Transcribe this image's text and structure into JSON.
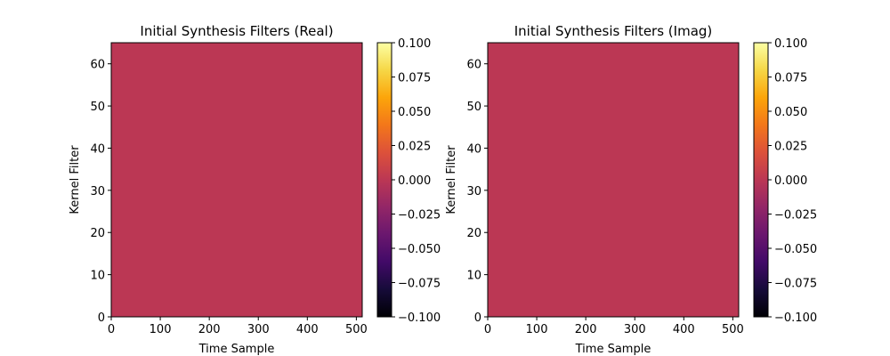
{
  "chart_data": [
    {
      "type": "heatmap",
      "title": "Initial Synthesis Filters (Real)",
      "xlabel": "Time Sample",
      "ylabel": "Kernel Filter",
      "xlim": [
        0,
        512
      ],
      "ylim": [
        0,
        65
      ],
      "xticks": [
        0,
        100,
        200,
        300,
        400,
        500
      ],
      "yticks": [
        0,
        10,
        20,
        30,
        40,
        50,
        60
      ],
      "values": "all 0.0 (uniform)",
      "fill_value": 0.0,
      "colormap": "inferno",
      "fill_color": "#bb3754",
      "colorbar": {
        "vmin": -0.1,
        "vmax": 0.1,
        "ticks": [
          -0.1,
          -0.075,
          -0.05,
          -0.025,
          0.0,
          0.025,
          0.05,
          0.075,
          0.1
        ],
        "tick_labels": [
          "−0.100",
          "−0.075",
          "−0.050",
          "−0.025",
          "0.000",
          "0.025",
          "0.050",
          "0.075",
          "0.100"
        ]
      }
    },
    {
      "type": "heatmap",
      "title": "Initial Synthesis Filters (Imag)",
      "xlabel": "Time Sample",
      "ylabel": "Kernel Filter",
      "xlim": [
        0,
        512
      ],
      "ylim": [
        0,
        65
      ],
      "xticks": [
        0,
        100,
        200,
        300,
        400,
        500
      ],
      "yticks": [
        0,
        10,
        20,
        30,
        40,
        50,
        60
      ],
      "values": "all 0.0 (uniform)",
      "fill_value": 0.0,
      "colormap": "inferno",
      "fill_color": "#bb3754",
      "colorbar": {
        "vmin": -0.1,
        "vmax": 0.1,
        "ticks": [
          -0.1,
          -0.075,
          -0.05,
          -0.025,
          0.0,
          0.025,
          0.05,
          0.075,
          0.1
        ],
        "tick_labels": [
          "−0.100",
          "−0.075",
          "−0.050",
          "−0.025",
          "0.000",
          "0.025",
          "0.050",
          "0.075",
          "0.100"
        ]
      }
    }
  ]
}
